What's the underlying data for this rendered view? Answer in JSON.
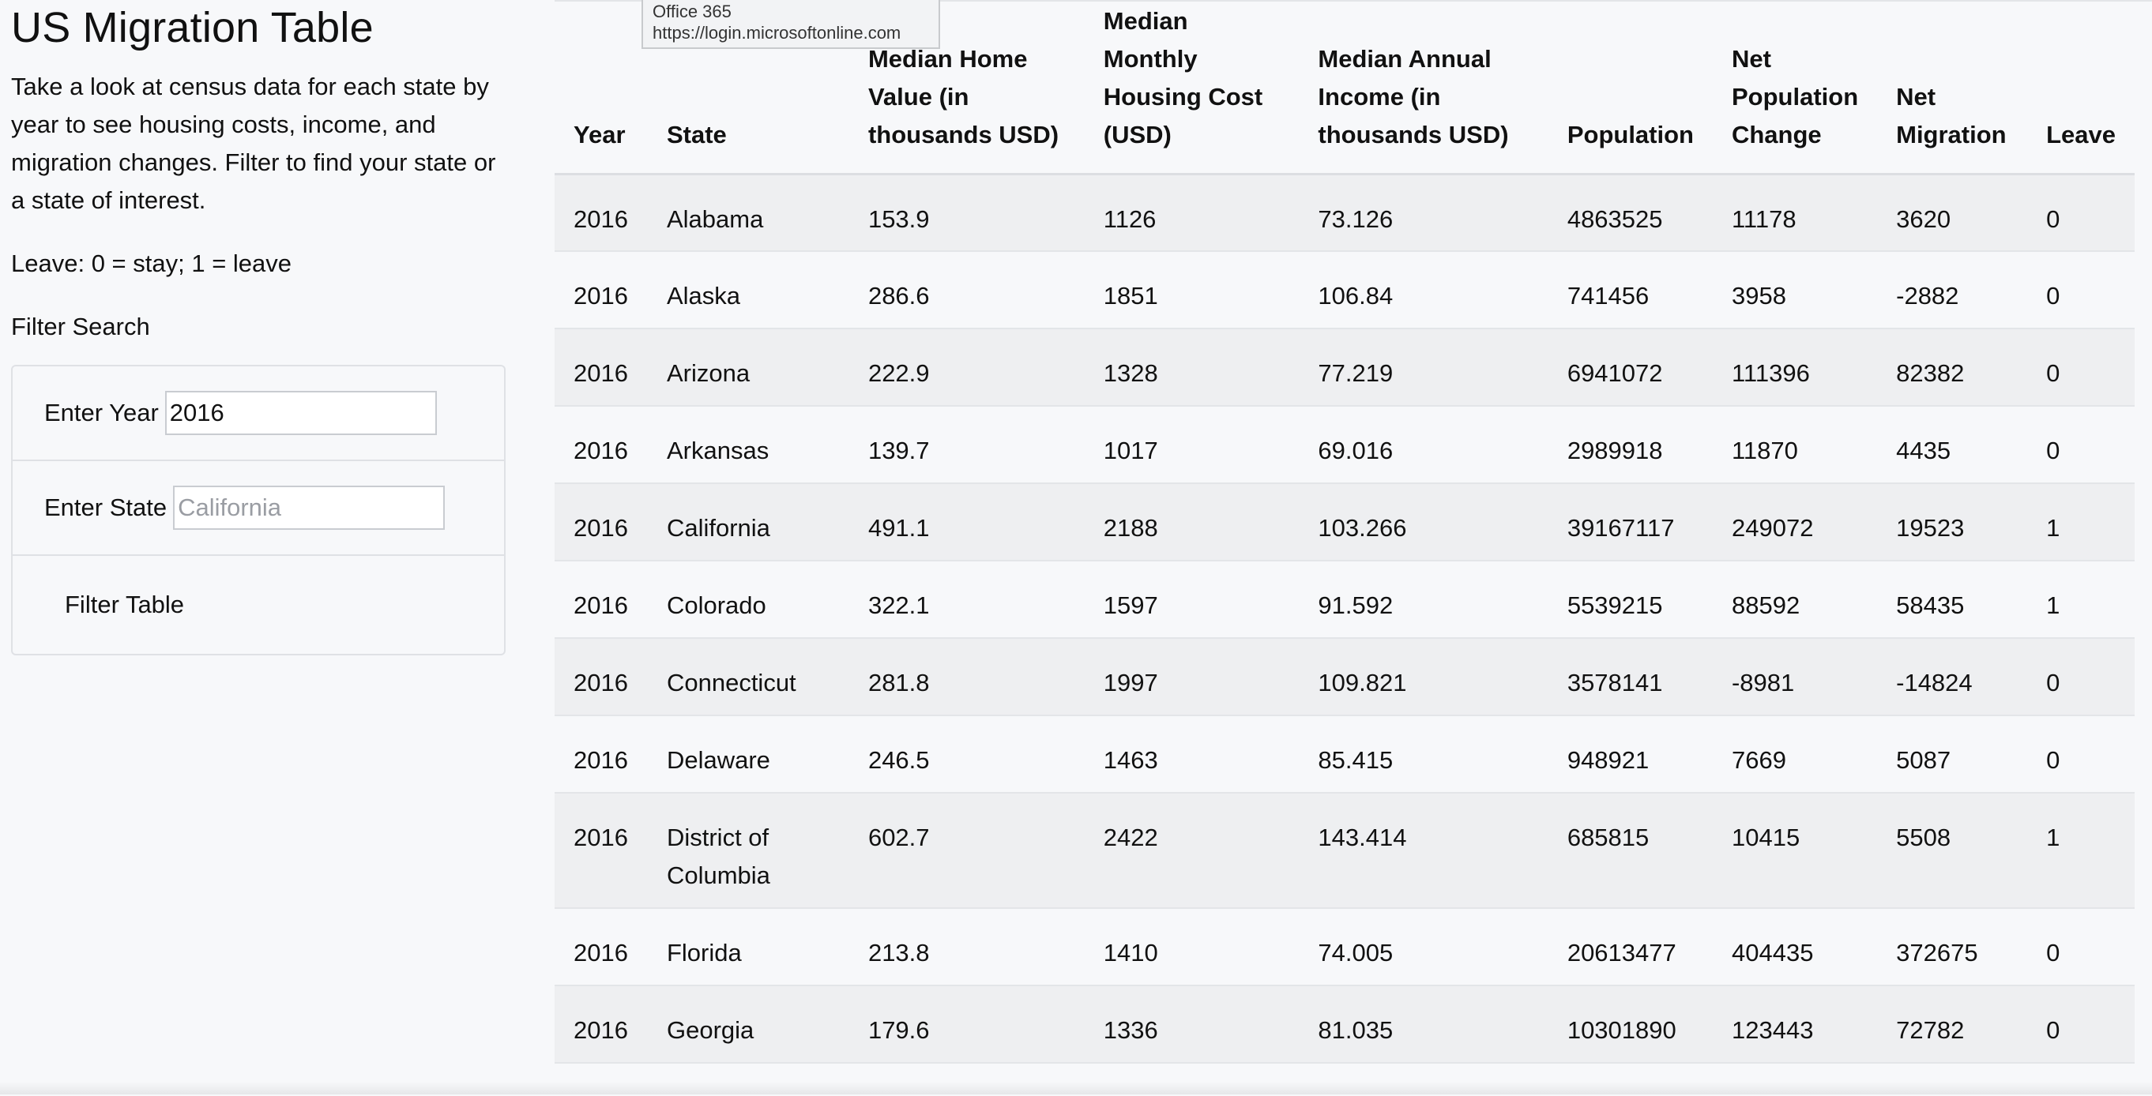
{
  "tooltip": {
    "title": "Office 365",
    "url": "https://login.microsoftonline.com"
  },
  "sidebar": {
    "title": "US Migration Table",
    "intro": "Take a look at census data for each state by year to see housing costs, income, and migration changes. Filter to find your state or a state of interest.",
    "legend": "Leave: 0 = stay; 1 = leave",
    "filter_heading": "Filter Search",
    "year_label": "Enter Year",
    "year_value": "2016",
    "state_label": "Enter State",
    "state_placeholder": "California",
    "filter_button": "Filter Table"
  },
  "table": {
    "headers": [
      "Year",
      "State",
      "Median Home Value (in thousands USD)",
      "Median Monthly Housing Cost (USD)",
      "Median Annual Income (in thousands USD)",
      "Population",
      "Net Population Change",
      "Net Migration",
      "Leave"
    ],
    "rows": [
      [
        "2016",
        "Alabama",
        "153.9",
        "1126",
        "73.126",
        "4863525",
        "11178",
        "3620",
        "0"
      ],
      [
        "2016",
        "Alaska",
        "286.6",
        "1851",
        "106.84",
        "741456",
        "3958",
        "-2882",
        "0"
      ],
      [
        "2016",
        "Arizona",
        "222.9",
        "1328",
        "77.219",
        "6941072",
        "111396",
        "82382",
        "0"
      ],
      [
        "2016",
        "Arkansas",
        "139.7",
        "1017",
        "69.016",
        "2989918",
        "11870",
        "4435",
        "0"
      ],
      [
        "2016",
        "California",
        "491.1",
        "2188",
        "103.266",
        "39167117",
        "249072",
        "19523",
        "1"
      ],
      [
        "2016",
        "Colorado",
        "322.1",
        "1597",
        "91.592",
        "5539215",
        "88592",
        "58435",
        "1"
      ],
      [
        "2016",
        "Connecticut",
        "281.8",
        "1997",
        "109.821",
        "3578141",
        "-8981",
        "-14824",
        "0"
      ],
      [
        "2016",
        "Delaware",
        "246.5",
        "1463",
        "85.415",
        "948921",
        "7669",
        "5087",
        "0"
      ],
      [
        "2016",
        "District of Columbia",
        "602.7",
        "2422",
        "143.414",
        "685815",
        "10415",
        "5508",
        "1"
      ],
      [
        "2016",
        "Florida",
        "213.8",
        "1410",
        "74.005",
        "20613477",
        "404435",
        "372675",
        "0"
      ],
      [
        "2016",
        "Georgia",
        "179.6",
        "1336",
        "81.035",
        "10301890",
        "123443",
        "72782",
        "0"
      ]
    ]
  }
}
